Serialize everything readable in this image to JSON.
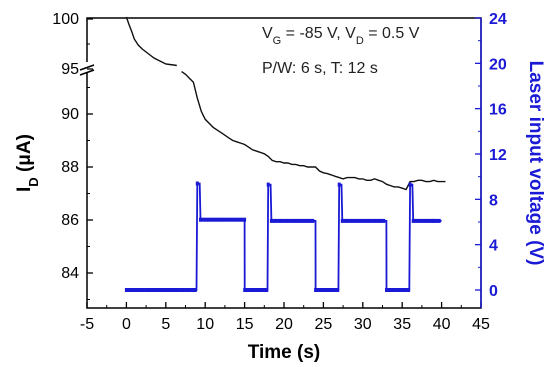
{
  "chart_data": {
    "type": "line",
    "annotation_line1": {
      "a": "V",
      "a_sub": "G",
      "b": " = -85 V, V",
      "b_sub": "D",
      "c": " = 0.5 V"
    },
    "annotation_line2": "P/W: 6 s, T: 12 s",
    "xlabel": "Time (s)",
    "ylabel_left": {
      "main": "I",
      "sub": "D",
      "unit": " (μA)"
    },
    "ylabel_right": "Laser input voltage (V)",
    "xlim": [
      -5,
      45
    ],
    "x_ticks": [
      -5,
      0,
      5,
      10,
      15,
      20,
      25,
      30,
      35,
      40,
      45
    ],
    "y_left_ticks_upper": [
      95,
      100
    ],
    "y_left_ticks_lower": [
      84,
      86,
      88,
      90
    ],
    "y_right_ticks": [
      0,
      4,
      8,
      12,
      16,
      20,
      24
    ],
    "y_right_lim": [
      -1.6,
      24.7
    ],
    "axis_break": "between 90 and 95 on left axis",
    "colors": {
      "current": "#111111",
      "laser": "#1a1ad6"
    },
    "series": [
      {
        "axis": "left",
        "segments": [
          {
            "x": [
              0,
              0.3,
              0.7,
              1.0,
              1.5,
              2.0,
              2.5,
              3.0,
              3.5,
              4.0,
              4.5,
              5.0,
              5.5,
              6.0,
              6.4
            ],
            "y": [
              100.2,
              99.5,
              98.7,
              98.0,
              97.4,
              97.0,
              96.7,
              96.4,
              96.1,
              95.9,
              95.7,
              95.5,
              95.45,
              95.4,
              95.35
            ]
          },
          {
            "x": [
              7.0,
              7.5,
              8.0,
              8.5,
              9.0,
              9.5,
              10.0,
              10.5,
              11.0,
              11.5,
              12.0,
              12.5,
              13.0,
              13.5,
              14.0,
              14.5,
              15.0,
              15.5,
              16.0,
              16.5,
              17.0,
              17.5,
              18.0,
              18.5,
              19.0,
              19.5,
              20.0,
              20.5,
              21.0,
              21.5,
              22.0,
              22.5,
              23.0,
              23.5,
              24.0,
              24.5,
              25.0,
              25.5,
              26.0,
              26.5,
              27.0,
              27.5,
              28.0,
              28.5,
              29.0,
              29.5,
              30.0,
              30.5,
              31.0,
              31.5,
              32.0,
              32.5,
              33.0,
              33.5,
              34.0,
              34.5,
              35.0,
              35.5,
              36.0,
              36.5,
              37.0,
              37.5,
              38.0,
              38.5,
              39.0,
              39.5,
              40.0,
              40.5
            ],
            "y": [
              91.6,
              91.5,
              91.35,
              91.2,
              90.6,
              90.1,
              89.8,
              89.65,
              89.5,
              89.4,
              89.3,
              89.2,
              89.1,
              89.0,
              88.95,
              88.9,
              88.85,
              88.75,
              88.65,
              88.6,
              88.55,
              88.5,
              88.4,
              88.25,
              88.2,
              88.2,
              88.15,
              88.15,
              88.1,
              88.1,
              88.05,
              88.05,
              88.0,
              88.0,
              88.0,
              87.85,
              87.78,
              87.75,
              87.7,
              87.65,
              87.6,
              87.55,
              87.6,
              87.6,
              87.6,
              87.55,
              87.55,
              87.5,
              87.5,
              87.55,
              87.5,
              87.45,
              87.35,
              87.3,
              87.25,
              87.25,
              87.2,
              87.15,
              87.45,
              87.45,
              87.5,
              87.5,
              87.45,
              87.45,
              87.5,
              87.45,
              87.45,
              87.45
            ]
          }
        ]
      },
      {
        "axis": "right",
        "x": [
          0,
          8.9,
          9.0,
          9.3,
          9.4,
          15.0,
          15.01,
          17.9,
          18.0,
          18.3,
          18.4,
          24.0,
          24.01,
          26.9,
          27.0,
          27.3,
          27.4,
          33.0,
          33.01,
          35.9,
          36.0,
          36.3,
          36.4,
          38.5,
          39.0,
          40.0
        ],
        "y": [
          0,
          0,
          9.4,
          9.4,
          6.2,
          6.2,
          0,
          0,
          9.3,
          9.3,
          6.1,
          6.1,
          0,
          0,
          9.3,
          9.3,
          6.1,
          6.1,
          0,
          0,
          9.3,
          9.3,
          6.1,
          6.1,
          6.1,
          6.1
        ]
      }
    ]
  }
}
